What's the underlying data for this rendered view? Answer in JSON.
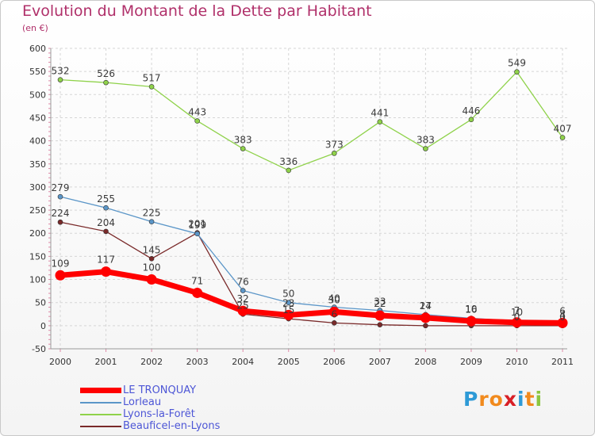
{
  "title": "Evolution du Montant de la Dette par Habitant",
  "subtitle": "(en €)",
  "logo": {
    "text": "Proxiti",
    "letters": [
      "P",
      "r",
      "o",
      "x",
      "i",
      "t",
      "i"
    ],
    "colors": [
      "#2e9ad6",
      "#f18a1d",
      "#f18a1d",
      "#d81f26",
      "#2e9ad6",
      "#f18a1d",
      "#8cc63f"
    ]
  },
  "chart_data": {
    "type": "line",
    "title": "Evolution du Montant de la Dette par Habitant",
    "ylabel": "(en €)",
    "xlabel": "",
    "x": [
      "2000",
      "2001",
      "2002",
      "2003",
      "2004",
      "2005",
      "2006",
      "2007",
      "2008",
      "2009",
      "2010",
      "2011"
    ],
    "ylim": [
      -50,
      600
    ],
    "yticks": [
      -50,
      0,
      50,
      100,
      150,
      200,
      250,
      300,
      350,
      400,
      450,
      500,
      550,
      600
    ],
    "grid": true,
    "legend": "bottom-left",
    "series": [
      {
        "name": "LE TRONQUAY",
        "color": "#ff0000",
        "emphasis": true,
        "values": [
          109,
          117,
          100,
          71,
          32,
          23,
          30,
          22,
          17,
          10,
          7,
          6
        ],
        "labels": [
          "109",
          "117",
          "100",
          "71",
          "32",
          "23",
          "30",
          "22",
          "17",
          "10",
          "7",
          "6"
        ]
      },
      {
        "name": "Lorleau",
        "color": "#5b96c8",
        "values": [
          279,
          255,
          225,
          199,
          76,
          50,
          40,
          33,
          24,
          16,
          10,
          4
        ],
        "labels": [
          "279",
          "255",
          "225",
          "199",
          "76",
          "50",
          "40",
          "33",
          "24",
          "16",
          "10",
          "4"
        ]
      },
      {
        "name": "Lyons-la-Forêt",
        "color": "#8fd24a",
        "values": [
          532,
          526,
          517,
          443,
          383,
          336,
          373,
          441,
          383,
          446,
          549,
          407
        ],
        "labels": [
          "532",
          "526",
          "517",
          "443",
          "383",
          "336",
          "373",
          "441",
          "383",
          "446",
          "549",
          "407"
        ]
      },
      {
        "name": "Beauficel-en-Lyons",
        "color": "#7a2a2a",
        "values": [
          224,
          204,
          145,
          201,
          25,
          15,
          6,
          2,
          0,
          0,
          0,
          0
        ],
        "labels": [
          "224",
          "204",
          "145",
          "201",
          "25",
          "15",
          "6",
          "",
          "",
          "",
          "0",
          "0"
        ]
      }
    ]
  }
}
